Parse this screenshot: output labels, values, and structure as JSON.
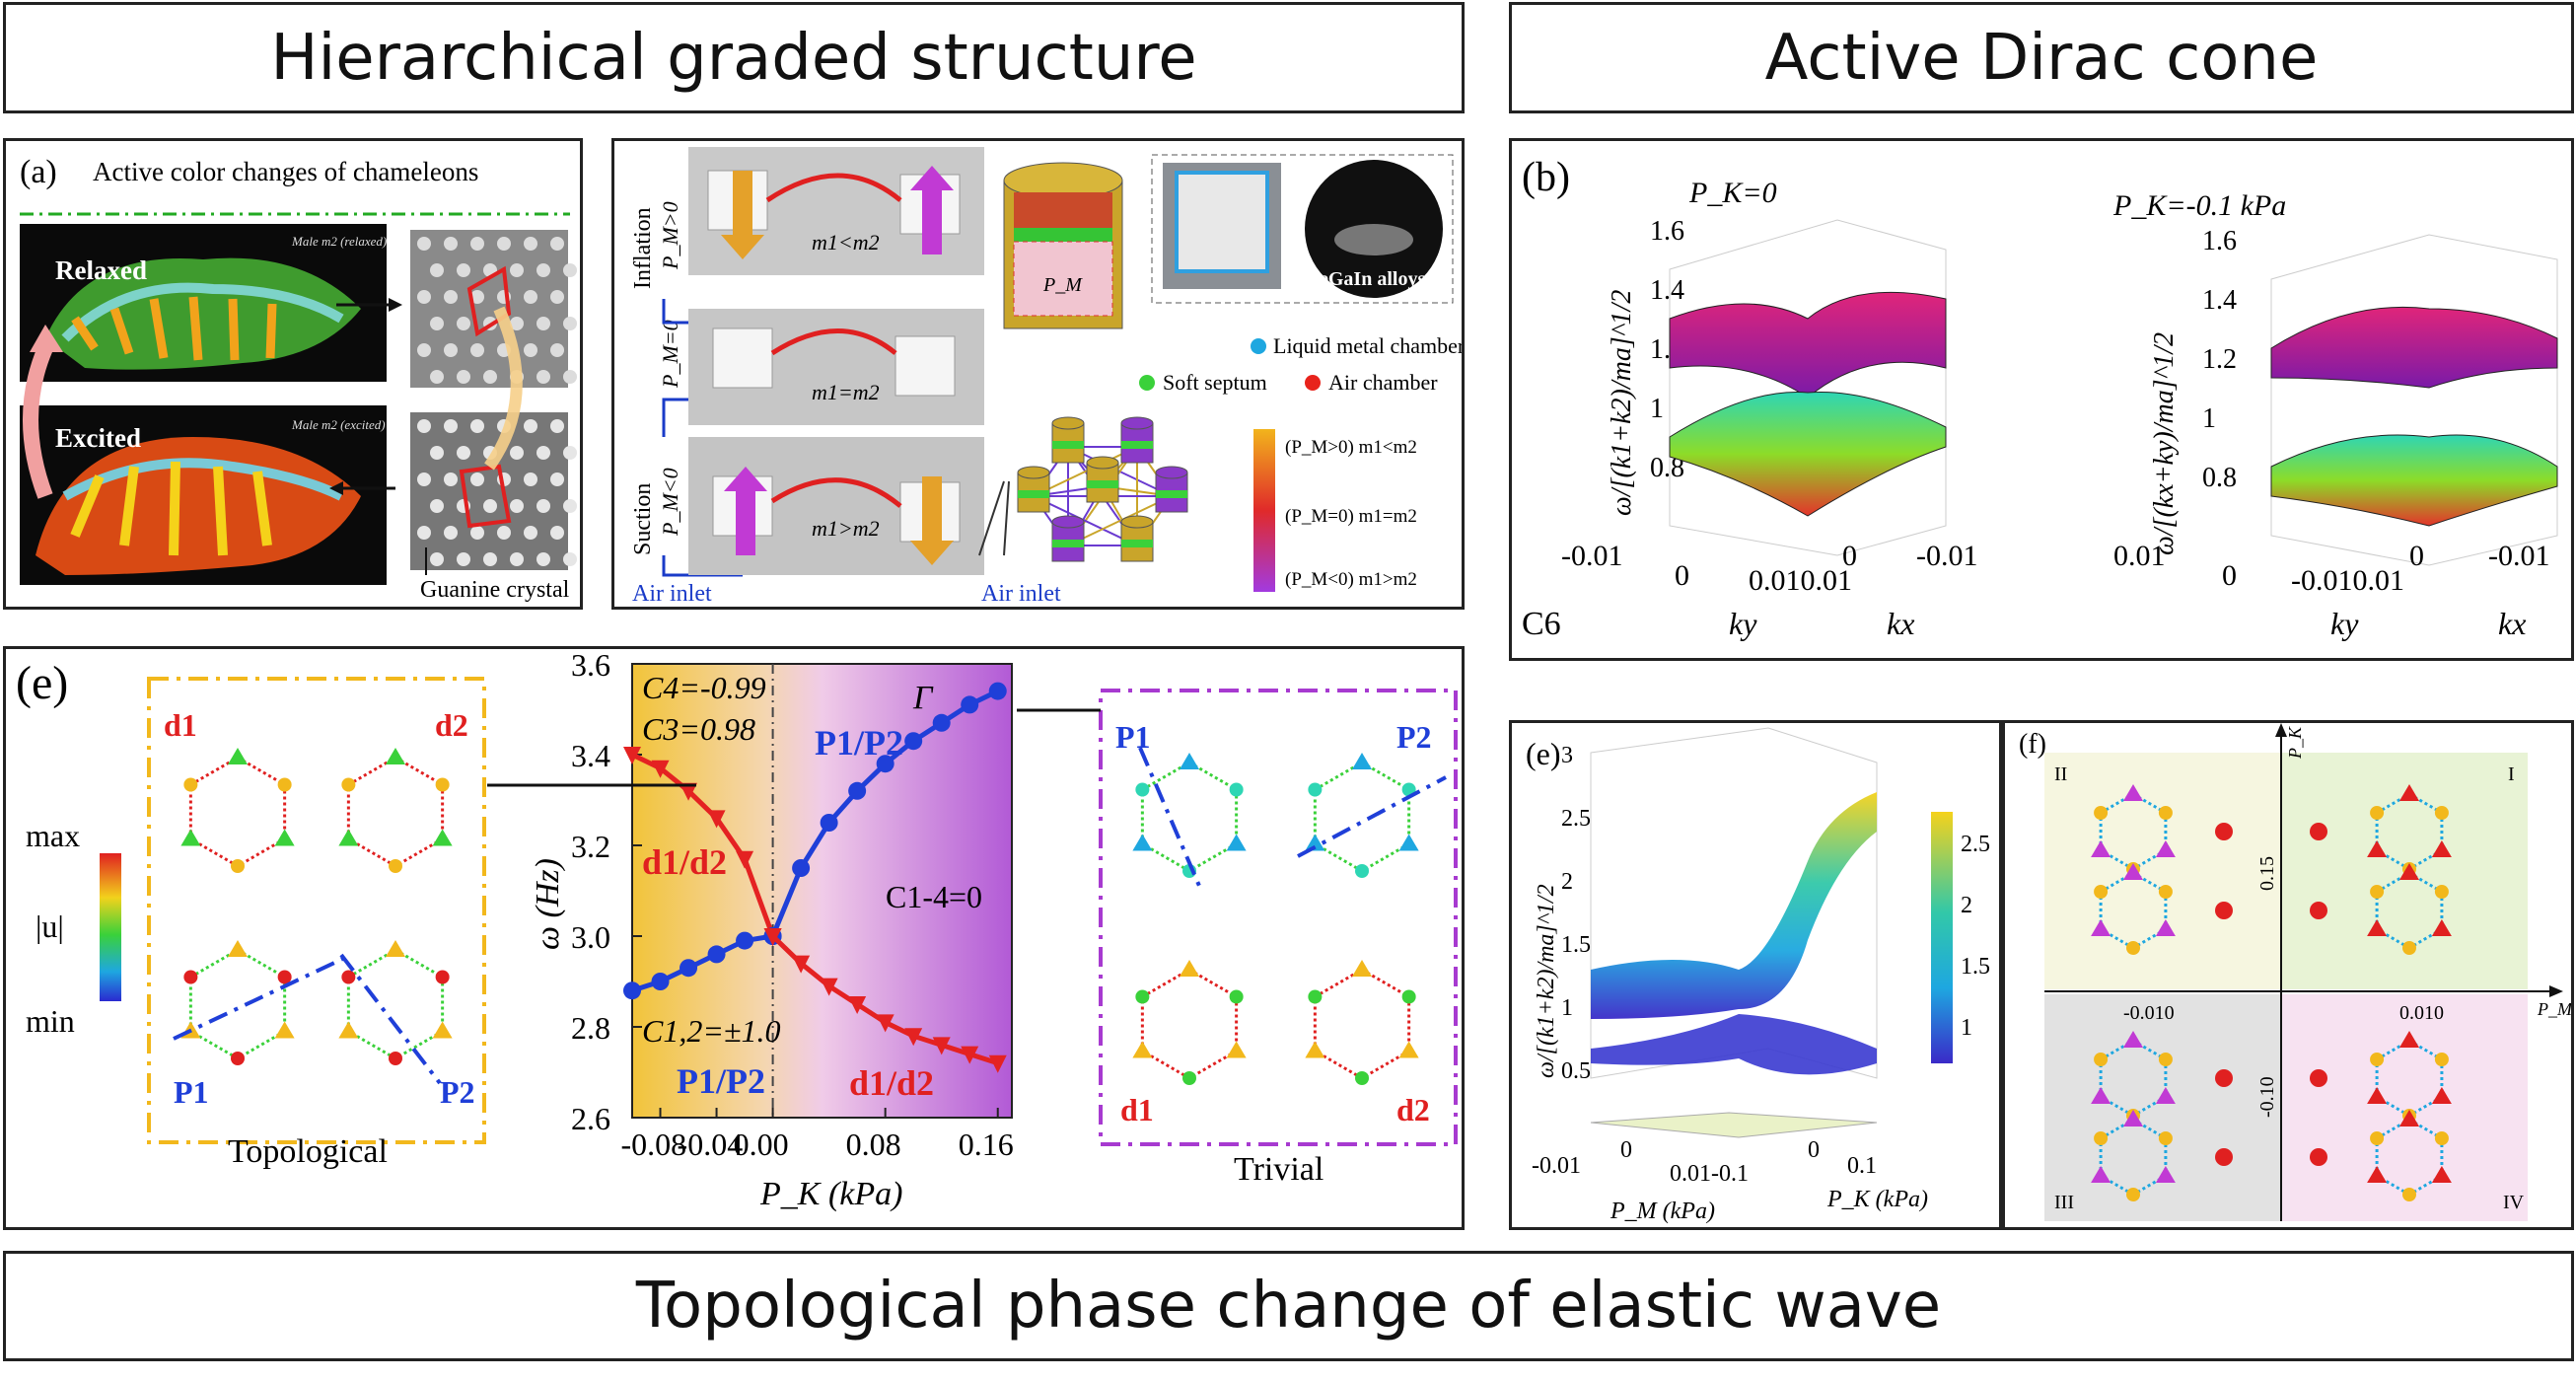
{
  "headers": {
    "left": "Hierarchical graded structure",
    "right": "Active Dirac cone",
    "bottom": "Topological phase change of elastic wave"
  },
  "panel_a": {
    "label": "(a)",
    "title": "Active color changes of chameleons",
    "relaxed": "Relaxed",
    "excited": "Excited",
    "tag_relaxed": "Male m2 (relaxed)",
    "tag_excited": "Male m2 (excited)",
    "crystal_label": "Guanine crystal"
  },
  "panel_mech": {
    "inflation": "Inflation",
    "suction": "Suction",
    "pm_pos": "P_M>0",
    "pm_zero": "P_M=0",
    "pm_neg": "P_M<0",
    "m_less": "m1<m2",
    "m_eq": "m1=m2",
    "m_greater": "m1>m2",
    "air_inlet_1": "Air inlet",
    "air_inlet_2": "Air inlet",
    "pm_label": "P_M",
    "egain": "eGaIn alloys",
    "legend_liquid": "Liquid metal chamber",
    "legend_septum": "Soft septum",
    "legend_air": "Air chamber",
    "scale_top": "(P_M>0)  m1<m2",
    "scale_mid": "(P_M=0)  m1=m2",
    "scale_bot": "(P_M<0)  m1>m2",
    "colors": {
      "liquid": "#1ea7e0",
      "septum": "#3ad13a",
      "air": "#e8231c"
    }
  },
  "panel_b": {
    "label": "(b)",
    "left_title": "P_K=0",
    "right_title": "P_K=-0.1 kPa",
    "ylabel": "ω/[(k1+k2)/ma]^1/2",
    "ylabel_right": "ω/[(kx+ky)/ma]^1/2",
    "c6": "C6",
    "yticks": [
      "1.6",
      "1.4",
      "1.2",
      "1",
      "0.8"
    ],
    "left_x_ticks": [
      "-0.01",
      "0",
      "0.010.01",
      "0",
      "-0.01"
    ],
    "right_x_ticks": [
      "0.01",
      "0",
      "-0.010.01",
      "0",
      "-0.01"
    ],
    "ky": "ky",
    "kx": "kx"
  },
  "panel_e_main": {
    "label": "(e)",
    "topological": "Topological",
    "trivial": "Trivial",
    "d1": "d1",
    "d2": "d2",
    "P1": "P1",
    "P2": "P2",
    "scale_max": "max",
    "scale_u": "|u|",
    "scale_min": "min",
    "C4": "C4=-0.99",
    "C3": "C3=0.98",
    "C12": "C1,2=±1.0",
    "C14": "C1-4=0",
    "gamma": "Γ",
    "branch_P1P2_top": "P1/P2",
    "branch_d1d2_top": "d1/d2",
    "branch_P1P2_bot": "P1/P2",
    "branch_d1d2_bot": "d1/d2",
    "xlabel": "P_K (kPa)",
    "ylabel": "ω (Hz)"
  },
  "chart_data": {
    "type": "line",
    "xlabel": "P_K (kPa)",
    "ylabel": "ω (Hz)",
    "xlim": [
      -0.1,
      0.17
    ],
    "ylim": [
      2.6,
      3.6
    ],
    "xticks": [
      "-0.08",
      "-0.04",
      "0.00",
      "0.08",
      "0.16"
    ],
    "yticks": [
      "3.6",
      "3.4",
      "3.2",
      "3.0",
      "2.8",
      "2.6"
    ],
    "series": [
      {
        "name": "P1/P2",
        "x": [
          -0.1,
          -0.08,
          -0.06,
          -0.04,
          -0.02,
          0.0
        ],
        "y": [
          2.88,
          2.9,
          2.93,
          2.96,
          2.99,
          3.0
        ],
        "color": "#1f3fd8"
      },
      {
        "name": "d1/d2",
        "x": [
          -0.1,
          -0.08,
          -0.06,
          -0.04,
          -0.02,
          0.0
        ],
        "y": [
          3.4,
          3.37,
          3.32,
          3.26,
          3.17,
          3.0
        ],
        "color": "#e42222"
      },
      {
        "name": "P1/P2",
        "x": [
          0.0,
          0.02,
          0.04,
          0.06,
          0.08,
          0.1,
          0.12,
          0.14,
          0.16
        ],
        "y": [
          3.0,
          3.15,
          3.25,
          3.32,
          3.38,
          3.43,
          3.47,
          3.51,
          3.54
        ],
        "color": "#1f3fd8"
      },
      {
        "name": "d1/d2",
        "x": [
          0.0,
          0.02,
          0.04,
          0.06,
          0.08,
          0.1,
          0.12,
          0.14,
          0.16
        ],
        "y": [
          3.0,
          2.94,
          2.89,
          2.85,
          2.81,
          2.78,
          2.76,
          2.74,
          2.72
        ],
        "color": "#e42222"
      }
    ]
  },
  "panel_e_small": {
    "label": "(e)",
    "ylabel": "ω/[(k1+k2)/ma]^1/2",
    "yticks": [
      "3",
      "2.5",
      "2",
      "1.5",
      "1",
      "0.5"
    ],
    "cbar_ticks": [
      "2.5",
      "2",
      "1.5",
      "1"
    ],
    "x_ticks": [
      "-0.01",
      "0",
      "0.01-0.1",
      "0",
      "0.1"
    ],
    "xlabel_pm": "P_M (kPa)",
    "xlabel_pk": "P_K (kPa)"
  },
  "panel_f": {
    "label": "(f)",
    "q1": "I",
    "q2": "II",
    "q3": "III",
    "q4": "IV",
    "pk": "P_K",
    "pm": "P_M",
    "t_top": "0.15",
    "t_bot": "-0.10",
    "t_left": "-0.010",
    "t_right": "0.010",
    "colors": {
      "q1": "#e8f3d5",
      "q2": "#f6f6e0",
      "q3": "#e2e2e2",
      "q4": "#f7e2f1"
    }
  }
}
